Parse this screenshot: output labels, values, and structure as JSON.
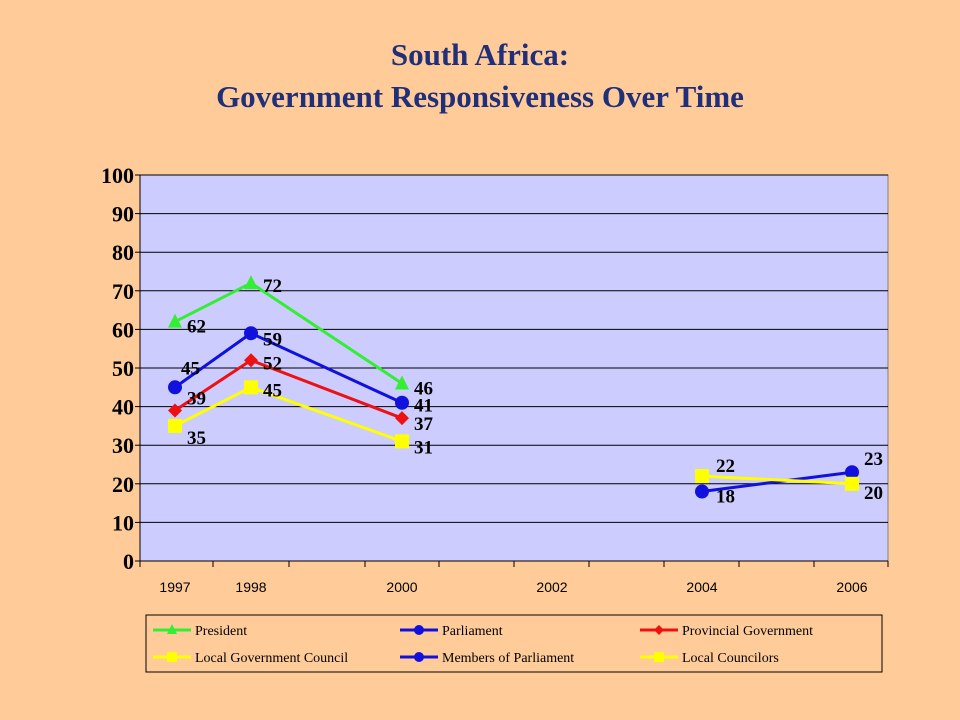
{
  "title": {
    "line1": "South Africa:",
    "line2": "Government Responsiveness Over Time"
  },
  "chart_data": {
    "type": "line",
    "x_tick_labels": [
      "1997",
      "1998",
      "2000",
      "2002",
      "2004",
      "2006"
    ],
    "y_tick_labels": [
      "0",
      "10",
      "20",
      "30",
      "40",
      "50",
      "60",
      "70",
      "80",
      "90",
      "100"
    ],
    "ylim": [
      0,
      100
    ],
    "grid": true,
    "legend_position": "bottom",
    "plot_background": "#CCCCFF",
    "series": [
      {
        "name": "President",
        "color": "#33EE33",
        "marker": "triangle",
        "points": [
          {
            "x": "1997",
            "y": 62
          },
          {
            "x": "1998",
            "y": 72
          },
          {
            "x": "2000",
            "y": 46
          }
        ]
      },
      {
        "name": "Parliament",
        "color": "#1111DD",
        "marker": "circle",
        "points": [
          {
            "x": "1997",
            "y": 45
          },
          {
            "x": "1998",
            "y": 59
          },
          {
            "x": "2000",
            "y": 41
          }
        ]
      },
      {
        "name": "Provincial Government",
        "color": "#EE1111",
        "marker": "diamond",
        "points": [
          {
            "x": "1997",
            "y": 39
          },
          {
            "x": "1998",
            "y": 52
          },
          {
            "x": "2000",
            "y": 37
          }
        ]
      },
      {
        "name": "Local Government Council",
        "color": "#FFFF00",
        "marker": "square",
        "points": [
          {
            "x": "1997",
            "y": 35
          },
          {
            "x": "1998",
            "y": 45
          },
          {
            "x": "2000",
            "y": 31
          }
        ]
      },
      {
        "name": "Members of Parliament",
        "color": "#1111DD",
        "marker": "circle",
        "points": [
          {
            "x": "2004",
            "y": 18
          },
          {
            "x": "2006",
            "y": 23
          }
        ]
      },
      {
        "name": "Local Councilors",
        "color": "#FFFF00",
        "marker": "square",
        "points": [
          {
            "x": "2004",
            "y": 22
          },
          {
            "x": "2006",
            "y": 20
          }
        ]
      }
    ]
  }
}
